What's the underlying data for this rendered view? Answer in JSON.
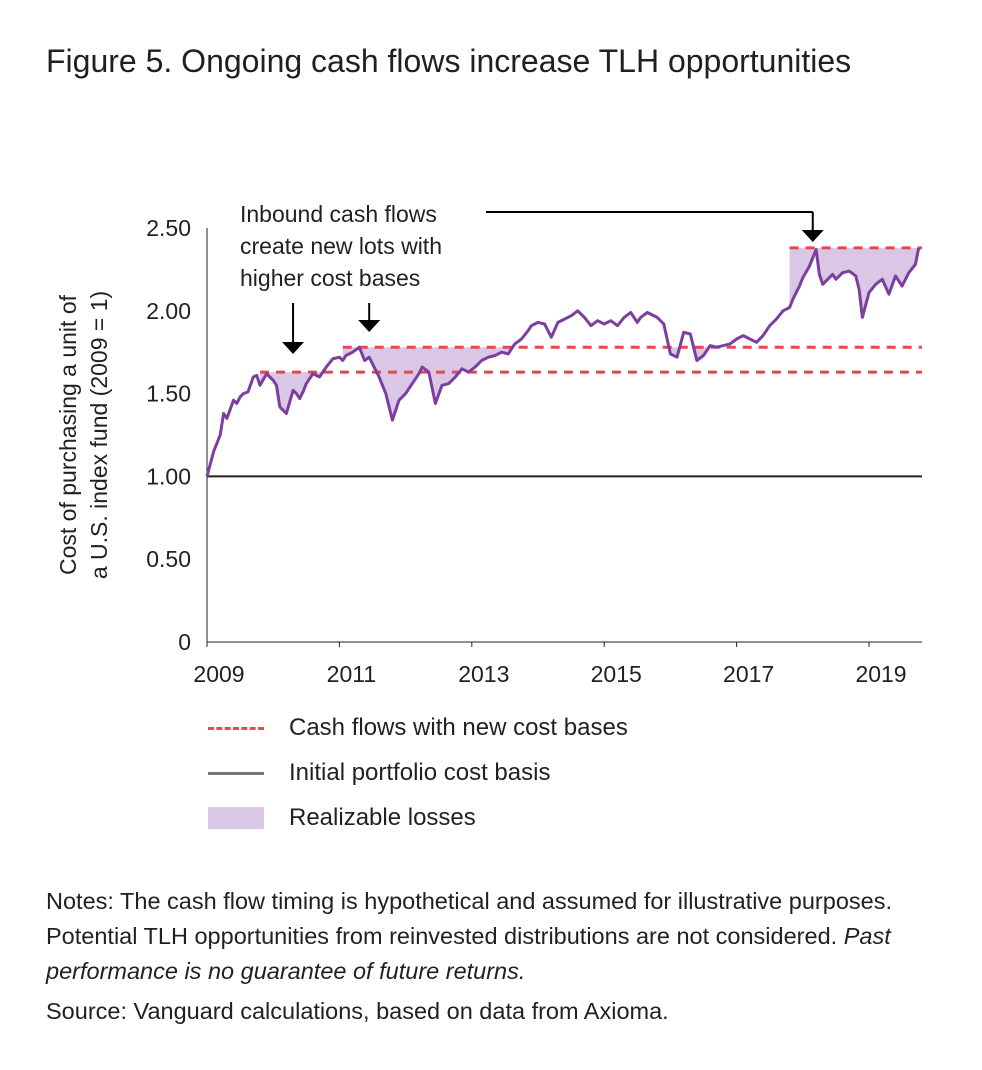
{
  "figure": {
    "title": "Figure 5. Ongoing cash flows increase TLH opportunities"
  },
  "chart_data": {
    "type": "line",
    "ylabel_line1": "Cost of purchasing a unit of",
    "ylabel_line2": "a U.S. index fund (2009 = 1)",
    "ylim": [
      0,
      2.5
    ],
    "xlim": [
      2009.0,
      2019.8
    ],
    "y_ticks": [
      "0",
      "0.50",
      "1.00",
      "1.50",
      "2.00",
      "2.50"
    ],
    "y_tick_values": [
      0,
      0.5,
      1.0,
      1.5,
      2.0,
      2.5
    ],
    "x_ticks": [
      "2009",
      "2011",
      "2013",
      "2015",
      "2017",
      "2019"
    ],
    "x_tick_values": [
      2009,
      2011,
      2013,
      2015,
      2017,
      2019
    ],
    "grid": false,
    "legend_position": "bottom",
    "series": [
      {
        "name": "Cost of purchasing a unit of a U.S. index fund",
        "color": "#7b3fa0",
        "x": [
          2009.0,
          2009.1,
          2009.2,
          2009.25,
          2009.3,
          2009.4,
          2009.45,
          2009.5,
          2009.55,
          2009.62,
          2009.7,
          2009.75,
          2009.8,
          2009.9,
          2010.0,
          2010.05,
          2010.1,
          2010.15,
          2010.2,
          2010.3,
          2010.35,
          2010.4,
          2010.45,
          2010.5,
          2010.6,
          2010.7,
          2010.8,
          2010.9,
          2011.0,
          2011.05,
          2011.1,
          2011.2,
          2011.3,
          2011.38,
          2011.45,
          2011.5,
          2011.6,
          2011.7,
          2011.8,
          2011.9,
          2011.95,
          2012.0,
          2012.1,
          2012.2,
          2012.25,
          2012.35,
          2012.45,
          2012.55,
          2012.65,
          2012.75,
          2012.85,
          2012.95,
          2013.05,
          2013.15,
          2013.25,
          2013.35,
          2013.45,
          2013.55,
          2013.65,
          2013.75,
          2013.85,
          2013.9,
          2014.0,
          2014.1,
          2014.2,
          2014.3,
          2014.4,
          2014.5,
          2014.6,
          2014.7,
          2014.8,
          2014.9,
          2015.0,
          2015.1,
          2015.2,
          2015.3,
          2015.4,
          2015.45,
          2015.5,
          2015.55,
          2015.65,
          2015.7,
          2015.8,
          2015.9,
          2016.0,
          2016.1,
          2016.2,
          2016.3,
          2016.4,
          2016.5,
          2016.6,
          2016.7,
          2016.8,
          2016.9,
          2017.0,
          2017.1,
          2017.2,
          2017.3,
          2017.4,
          2017.5,
          2017.6,
          2017.7,
          2017.8,
          2017.85,
          2017.9,
          2017.95,
          2018.0,
          2018.1,
          2018.2,
          2018.25,
          2018.3,
          2018.4,
          2018.45,
          2018.5,
          2018.6,
          2018.7,
          2018.8,
          2018.85,
          2018.9,
          2019.0,
          2019.1,
          2019.2,
          2019.3,
          2019.4,
          2019.5,
          2019.6,
          2019.7,
          2019.75
        ],
        "y": [
          1.0,
          1.15,
          1.25,
          1.38,
          1.35,
          1.46,
          1.44,
          1.48,
          1.5,
          1.51,
          1.6,
          1.61,
          1.55,
          1.62,
          1.58,
          1.55,
          1.42,
          1.4,
          1.38,
          1.52,
          1.5,
          1.47,
          1.51,
          1.56,
          1.62,
          1.6,
          1.66,
          1.71,
          1.72,
          1.7,
          1.73,
          1.75,
          1.78,
          1.7,
          1.72,
          1.68,
          1.6,
          1.5,
          1.34,
          1.46,
          1.48,
          1.5,
          1.56,
          1.62,
          1.66,
          1.63,
          1.44,
          1.55,
          1.56,
          1.6,
          1.65,
          1.63,
          1.66,
          1.7,
          1.72,
          1.73,
          1.75,
          1.74,
          1.8,
          1.83,
          1.88,
          1.91,
          1.93,
          1.92,
          1.84,
          1.93,
          1.95,
          1.97,
          2.0,
          1.96,
          1.91,
          1.94,
          1.92,
          1.94,
          1.91,
          1.96,
          1.99,
          1.96,
          1.93,
          1.96,
          1.99,
          1.98,
          1.96,
          1.92,
          1.74,
          1.72,
          1.87,
          1.86,
          1.7,
          1.73,
          1.79,
          1.78,
          1.79,
          1.8,
          1.83,
          1.85,
          1.83,
          1.81,
          1.85,
          1.91,
          1.95,
          2.0,
          2.02,
          2.07,
          2.11,
          2.15,
          2.2,
          2.27,
          2.37,
          2.22,
          2.16,
          2.2,
          2.22,
          2.19,
          2.23,
          2.24,
          2.21,
          2.13,
          1.96,
          2.11,
          2.16,
          2.19,
          2.1,
          2.21,
          2.15,
          2.23,
          2.28,
          2.38
        ]
      }
    ],
    "cost_bases": [
      {
        "value": 1.0,
        "x_start": 2009.0,
        "style": "solid"
      },
      {
        "value": 1.63,
        "x_start": 2009.8,
        "style": "dashed"
      },
      {
        "value": 1.78,
        "x_start": 2011.05,
        "style": "dashed"
      },
      {
        "value": 2.38,
        "x_start": 2017.8,
        "style": "dashed"
      }
    ],
    "annotation": {
      "lines": [
        "Inbound cash flows",
        "create new lots with",
        "higher cost bases"
      ],
      "arrow_targets_x": [
        2010.3,
        2011.45,
        2018.15
      ]
    },
    "legend": [
      {
        "label": "Cash flows with new cost bases",
        "style": "dashed",
        "color": "#e5484d"
      },
      {
        "label": "Initial portfolio cost basis",
        "style": "solid",
        "color": "#777777"
      },
      {
        "label": "Realizable losses",
        "style": "fill",
        "color": "#d9c7e5"
      }
    ],
    "colors": {
      "line": "#7b3fa0",
      "dashed": "#e5484d",
      "fill": "#d9c7e5",
      "baseline": "#231f20",
      "axis": "#231f20"
    }
  },
  "notes": {
    "label": "Notes:",
    "text": " The cash flow timing is hypothetical and assumed for illustrative purposes. Potential TLH opportunities from reinvested distributions are not considered. ",
    "italic": "Past performance is no guarantee of future returns."
  },
  "source": {
    "label": "Source:",
    "text": " Vanguard calculations, based on data from Axioma."
  }
}
